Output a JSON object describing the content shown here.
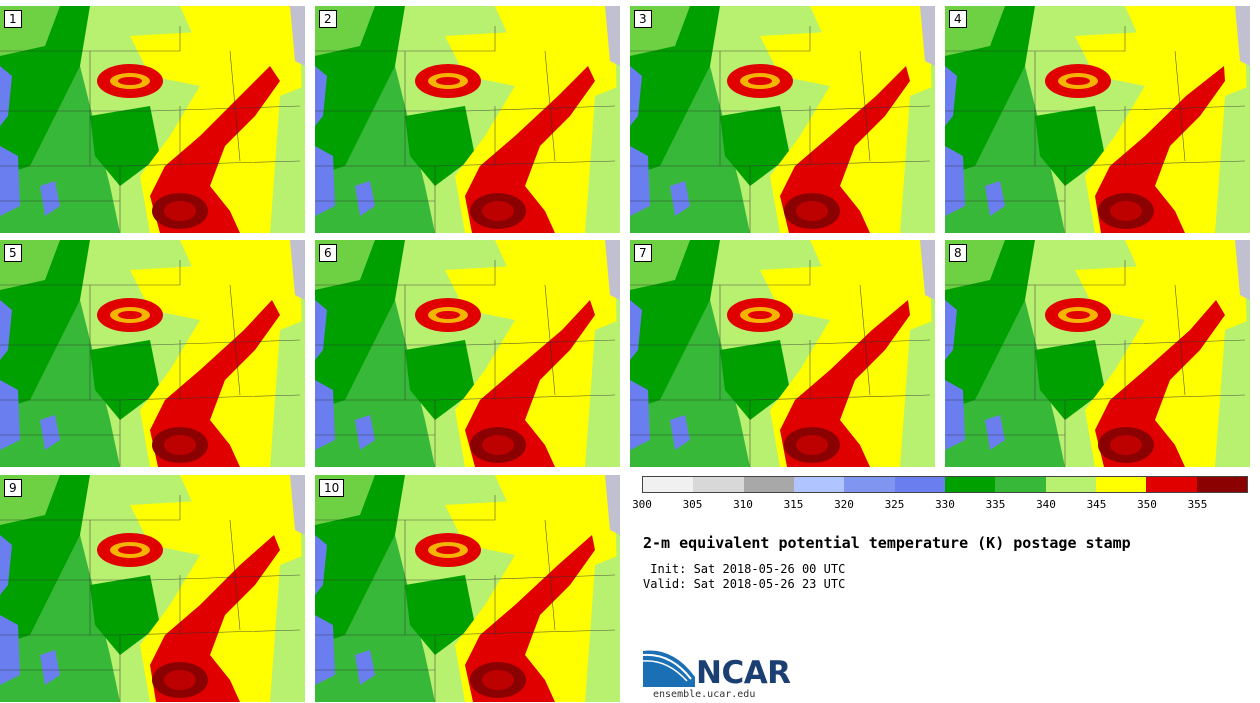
{
  "panels": [
    {
      "label": "1"
    },
    {
      "label": "2"
    },
    {
      "label": "3"
    },
    {
      "label": "4"
    },
    {
      "label": "5"
    },
    {
      "label": "6"
    },
    {
      "label": "7"
    },
    {
      "label": "8"
    },
    {
      "label": "9"
    },
    {
      "label": "10"
    }
  ],
  "colorbar": {
    "ticks": [
      "300",
      "305",
      "310",
      "315",
      "320",
      "325",
      "330",
      "335",
      "340",
      "345",
      "350",
      "355"
    ],
    "colors": [
      "#f0f0f0",
      "#d8d8d8",
      "#a8a8a8",
      "#b0c4ff",
      "#7f95f0",
      "#6a7ef0",
      "#00a000",
      "#38b838",
      "#b8f070",
      "#ffff00",
      "#e00000",
      "#8b0000"
    ]
  },
  "title": "2-m equivalent potential temperature (K) postage stamp",
  "init": " Init: Sat 2018-05-26 00 UTC",
  "valid": "Valid: Sat 2018-05-26 23 UTC",
  "logo": {
    "text": "NCAR",
    "url": "ensemble.ucar.edu"
  },
  "colors": {
    "lake": "#6a7ef0",
    "dark_green": "#00a000",
    "mid_green": "#38b838",
    "light_green": "#b8f070",
    "yellow": "#ffff00",
    "red": "#e00000",
    "dark_red": "#8b0000"
  }
}
